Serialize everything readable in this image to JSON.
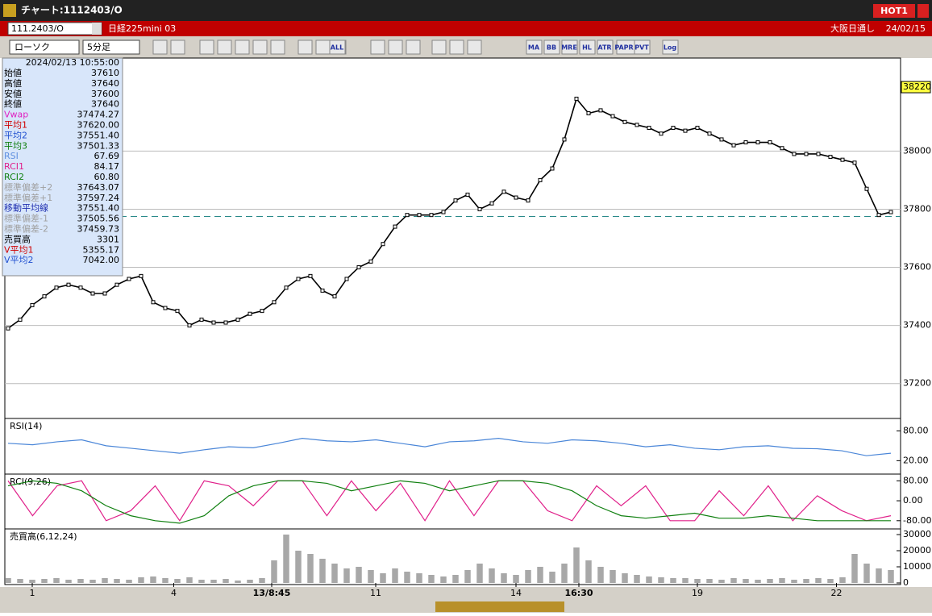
{
  "window": {
    "title": "チャート:1112403/O",
    "hot_button": "HOT1"
  },
  "toolbar": {
    "symbol": "111.2403/O",
    "symbol_name": "日経225mini 03",
    "chart_kind": "ローソク",
    "interval": "5分足",
    "session": "大阪日通し",
    "date": "24/02/15",
    "buttons": [
      "ALL",
      "MA",
      "BB",
      "MRE",
      "HL",
      "ATR",
      "PAPR",
      "PVT",
      "Log"
    ]
  },
  "info_panel": {
    "timestamp": "2024/02/13 10:55:00",
    "rows": [
      {
        "label": "始値",
        "value": "37610",
        "color": "#000000"
      },
      {
        "label": "高値",
        "value": "37640",
        "color": "#000000"
      },
      {
        "label": "安値",
        "value": "37600",
        "color": "#000000"
      },
      {
        "label": "終値",
        "value": "37640",
        "color": "#000000"
      },
      {
        "label": "Vwap",
        "value": "37474.27",
        "color": "#e020c0"
      },
      {
        "label": "平均1",
        "value": "37620.00",
        "color": "#d00000"
      },
      {
        "label": "平均2",
        "value": "37551.40",
        "color": "#2050d0"
      },
      {
        "label": "平均3",
        "value": "37501.33",
        "color": "#108010"
      },
      {
        "label": "RSI",
        "value": "67.69",
        "color": "#6090e0"
      },
      {
        "label": "RCI1",
        "value": "84.17",
        "color": "#e0208a"
      },
      {
        "label": "RCI2",
        "value": "60.80",
        "color": "#108010"
      },
      {
        "label": "標準偏差+2",
        "value": "37643.07",
        "color": "#a0a0a0"
      },
      {
        "label": "標準偏差+1",
        "value": "37597.24",
        "color": "#a0a0a0"
      },
      {
        "label": "移動平均線",
        "value": "37551.40",
        "color": "#2030b0"
      },
      {
        "label": "標準偏差-1",
        "value": "37505.56",
        "color": "#a0a0a0"
      },
      {
        "label": "標準偏差-2",
        "value": "37459.73",
        "color": "#a0a0a0"
      },
      {
        "label": "売買高",
        "value": "3301",
        "color": "#000000"
      },
      {
        "label": "V平均1",
        "value": "5355.17",
        "color": "#d00000"
      },
      {
        "label": "V平均2",
        "value": "7042.00",
        "color": "#2050d0"
      }
    ]
  },
  "chart_data": [
    {
      "type": "line",
      "ylim": [
        37080,
        38320
      ],
      "yticks": [
        37200,
        37400,
        37600,
        37800,
        38000
      ],
      "grid": true,
      "price_marker": 38220,
      "reference_line": 37775,
      "series": [
        {
          "name": "終値",
          "color": "#000000",
          "values": [
            37390,
            37420,
            37470,
            37500,
            37530,
            37540,
            37530,
            37510,
            37510,
            37540,
            37560,
            37570,
            37480,
            37460,
            37450,
            37400,
            37420,
            37410,
            37410,
            37420,
            37440,
            37450,
            37480,
            37530,
            37560,
            37570,
            37520,
            37500,
            37560,
            37600,
            37620,
            37680,
            37740,
            37780,
            37780,
            37780,
            37790,
            37830,
            37850,
            37800,
            37820,
            37860,
            37840,
            37830,
            37900,
            37940,
            38040,
            38180,
            38130,
            38140,
            38120,
            38100,
            38090,
            38080,
            38060,
            38080,
            38070,
            38080,
            38060,
            38040,
            38020,
            38030,
            38030,
            38030,
            38010,
            37990,
            37990,
            37990,
            37980,
            37970,
            37960,
            37870,
            37780,
            37790
          ]
        }
      ]
    },
    {
      "type": "line",
      "title": "RSI(14)",
      "ylim": [
        -7,
        105
      ],
      "yticks": [
        {
          "value": 80,
          "label": "80.00"
        },
        {
          "value": 20,
          "label": "20.00"
        }
      ],
      "series": [
        {
          "color": "#4a86d8",
          "values": [
            55,
            52,
            58,
            62,
            50,
            45,
            40,
            35,
            42,
            48,
            46,
            55,
            65,
            60,
            58,
            62,
            55,
            48,
            58,
            60,
            65,
            58,
            55,
            62,
            60,
            55,
            48,
            52,
            45,
            42,
            48,
            50,
            45,
            44,
            40,
            30,
            35
          ]
        }
      ]
    },
    {
      "type": "line",
      "title": "RCI(9,26)",
      "ylim": [
        -113,
        107
      ],
      "yticks": [
        {
          "value": 80,
          "label": "80.00"
        },
        {
          "value": 0,
          "label": "0.00"
        },
        {
          "value": -80,
          "label": "-80.00"
        }
      ],
      "series": [
        {
          "color": "#e0208a",
          "values": [
            80,
            -60,
            60,
            80,
            -80,
            -40,
            60,
            -80,
            80,
            60,
            -20,
            80,
            80,
            -60,
            80,
            -40,
            70,
            -80,
            80,
            -60,
            80,
            80,
            -40,
            -80,
            60,
            -20,
            60,
            -80,
            -80,
            40,
            -60,
            60,
            -80,
            20,
            -40,
            -80,
            -60
          ]
        },
        {
          "color": "#108010",
          "values": [
            60,
            80,
            70,
            40,
            -20,
            -60,
            -80,
            -90,
            -60,
            20,
            60,
            80,
            80,
            70,
            40,
            60,
            80,
            70,
            40,
            60,
            80,
            80,
            70,
            40,
            -20,
            -60,
            -70,
            -60,
            -50,
            -70,
            -70,
            -60,
            -70,
            -80,
            -80,
            -80,
            -80
          ]
        }
      ]
    },
    {
      "type": "bar",
      "title": "売買高(6,12,24)",
      "ylim": [
        0,
        33500
      ],
      "yticks": [
        0,
        10000,
        20000,
        30000
      ],
      "color": "#a8a8a8",
      "xticks": [
        {
          "value": 2,
          "label": "1"
        },
        {
          "value": 13.7,
          "label": "4"
        },
        {
          "value": 21.8,
          "label": "13/8:45"
        },
        {
          "value": 30.4,
          "label": "11"
        },
        {
          "value": 42,
          "label": "14"
        },
        {
          "value": 47.2,
          "label": "16:30"
        },
        {
          "value": 57,
          "label": "19"
        },
        {
          "value": 68.5,
          "label": "22"
        }
      ],
      "values": [
        3000,
        2500,
        2000,
        2500,
        3000,
        2000,
        2500,
        2000,
        3000,
        2500,
        2000,
        3500,
        4000,
        3000,
        2500,
        3500,
        2000,
        2000,
        2500,
        1500,
        2000,
        3000,
        14000,
        30000,
        20000,
        18000,
        15000,
        12000,
        9000,
        10000,
        8000,
        6000,
        9000,
        7000,
        6000,
        5000,
        4000,
        5000,
        8000,
        12000,
        9000,
        6000,
        5000,
        8000,
        10000,
        7000,
        12000,
        22000,
        14000,
        10000,
        8000,
        6000,
        5000,
        4000,
        3500,
        3000,
        3000,
        2500,
        2500,
        2000,
        3000,
        2500,
        2000,
        2500,
        3000,
        2000,
        2500,
        3000,
        2500,
        3500,
        18000,
        12000,
        9000,
        8000
      ]
    }
  ]
}
